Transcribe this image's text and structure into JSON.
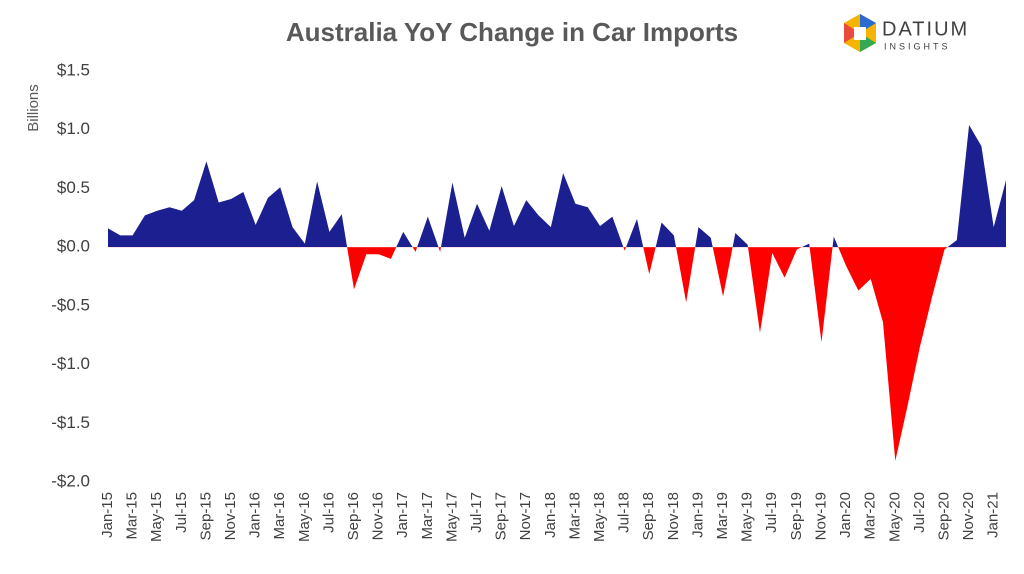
{
  "chart_data": {
    "type": "area",
    "title": "Australia YoY Change in Car Imports",
    "y_label": "Billions",
    "logo": {
      "name": "DATIUM",
      "sub": "INSIGHTS"
    },
    "categories": [
      "Jan-15",
      null,
      "Mar-15",
      null,
      "May-15",
      null,
      "Jul-15",
      null,
      "Sep-15",
      null,
      "Nov-15",
      null,
      "Jan-16",
      null,
      "Mar-16",
      null,
      "May-16",
      null,
      "Jul-16",
      null,
      "Sep-16",
      null,
      "Nov-16",
      null,
      "Jan-17",
      null,
      "Mar-17",
      null,
      "May-17",
      null,
      "Jul-17",
      null,
      "Sep-17",
      null,
      "Nov-17",
      null,
      "Jan-18",
      null,
      "Mar-18",
      null,
      "May-18",
      null,
      "Jul-18",
      null,
      "Sep-18",
      null,
      "Nov-18",
      null,
      "Jan-19",
      null,
      "Mar-19",
      null,
      "May-19",
      null,
      "Jul-19",
      null,
      "Sep-19",
      null,
      "Nov-19",
      null,
      "Jan-20",
      null,
      "Mar-20",
      null,
      "May-20",
      null,
      "Jul-20",
      null,
      "Sep-20",
      null,
      "Nov-20",
      null,
      "Jan-21",
      null
    ],
    "values": [
      0.16,
      0.1,
      0.1,
      0.27,
      0.31,
      0.34,
      0.31,
      0.4,
      0.73,
      0.38,
      0.41,
      0.47,
      0.19,
      0.42,
      0.51,
      0.17,
      0.03,
      0.56,
      0.13,
      0.28,
      -0.36,
      -0.06,
      -0.06,
      -0.1,
      0.13,
      -0.04,
      0.26,
      -0.04,
      0.55,
      0.08,
      0.37,
      0.14,
      0.52,
      0.18,
      0.4,
      0.27,
      0.17,
      0.63,
      0.37,
      0.34,
      0.18,
      0.26,
      -0.03,
      0.24,
      -0.23,
      0.21,
      0.1,
      -0.47,
      0.17,
      0.08,
      -0.42,
      0.12,
      0.02,
      -0.73,
      -0.05,
      -0.26,
      -0.02,
      0.03,
      -0.81,
      0.09,
      -0.16,
      -0.37,
      -0.27,
      -0.64,
      -1.82,
      -1.35,
      -0.85,
      -0.42,
      -0.02,
      0.06,
      1.04,
      0.86,
      0.17,
      0.57
    ],
    "positive_color": "#1c1f8f",
    "negative_color": "#ff0000",
    "ylim": [
      -2.0,
      1.5
    ],
    "yticks": [
      {
        "value": -2.0,
        "label": "-$2.0"
      },
      {
        "value": -1.5,
        "label": "-$1.5"
      },
      {
        "value": -1.0,
        "label": "-$1.0"
      },
      {
        "value": -0.5,
        "label": "-$0.5"
      },
      {
        "value": 0.0,
        "label": "$0.0"
      },
      {
        "value": 0.5,
        "label": "$0.5"
      },
      {
        "value": 1.0,
        "label": "$1.0"
      },
      {
        "value": 1.5,
        "label": "$1.5"
      }
    ]
  }
}
